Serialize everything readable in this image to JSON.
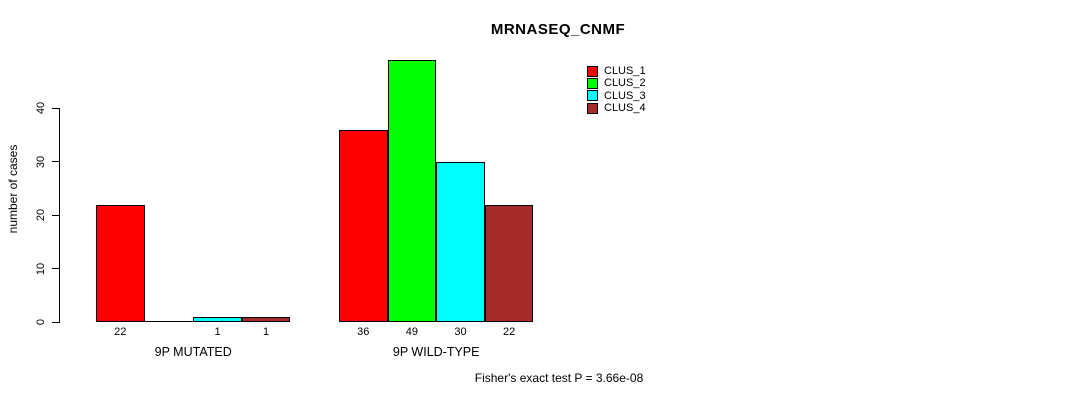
{
  "chart_data": {
    "type": "bar",
    "title": "MRNASEQ_CNMF",
    "ylabel": "number of cases",
    "xlabel": "",
    "categories": [
      "9P MUTATED",
      "9P WILD-TYPE"
    ],
    "series": [
      {
        "name": "CLUS_1",
        "color": "#FF0000",
        "values": [
          22,
          36
        ]
      },
      {
        "name": "CLUS_2",
        "color": "#00FF00",
        "values": [
          0,
          49
        ]
      },
      {
        "name": "CLUS_3",
        "color": "#00FFFF",
        "values": [
          1,
          30
        ]
      },
      {
        "name": "CLUS_4",
        "color": "#A52A2A",
        "values": [
          1,
          22
        ]
      }
    ],
    "bar_value_labels": [
      [
        "22",
        "",
        "1",
        "1"
      ],
      [
        "36",
        "49",
        "30",
        "22"
      ]
    ],
    "yticks": [
      0,
      10,
      20,
      30,
      40
    ],
    "ylim": [
      0,
      40
    ],
    "grid": false,
    "legend_position": "top-right",
    "annotation": "Fisher's exact test P = 3.66e-08",
    "colors": {
      "axis": "#000000",
      "text": "#000000",
      "background": "#FFFFFF"
    }
  }
}
